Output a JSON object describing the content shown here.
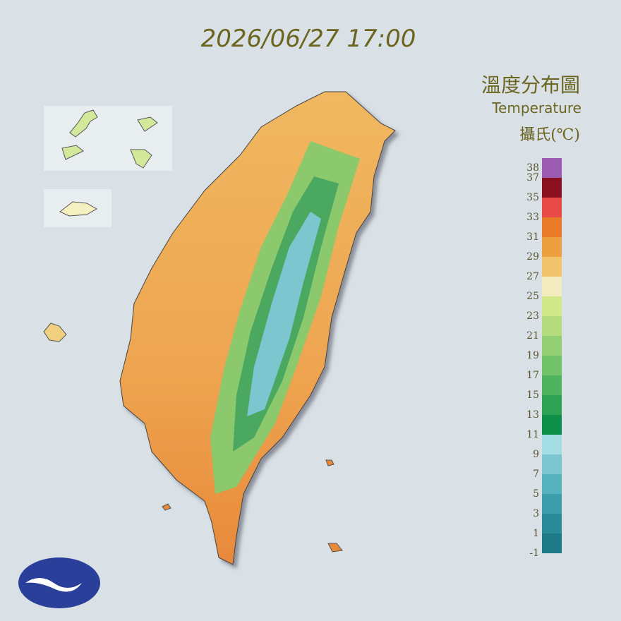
{
  "header": {
    "timestamp": "2026/06/27 17:00"
  },
  "legend": {
    "title": "溫度分布圖",
    "subtitle": "Temperature",
    "unit": "攝氏(℃)",
    "ticks": [
      38,
      37,
      35,
      33,
      31,
      29,
      27,
      25,
      23,
      21,
      19,
      17,
      15,
      13,
      11,
      9,
      7,
      5,
      3,
      1,
      -1
    ],
    "colors": [
      "#1e7a87",
      "#2a8c99",
      "#3b9eaa",
      "#56b2bd",
      "#7cc6d0",
      "#a4dde3",
      "#0e8f4a",
      "#2ea356",
      "#4fb35f",
      "#72c26a",
      "#95cf74",
      "#b5dc7e",
      "#d3e88a",
      "#f3ecc0",
      "#f2c56c",
      "#eda040",
      "#e87a2a",
      "#e84a4a",
      "#8a1020",
      "#9b5bb0"
    ]
  }
}
